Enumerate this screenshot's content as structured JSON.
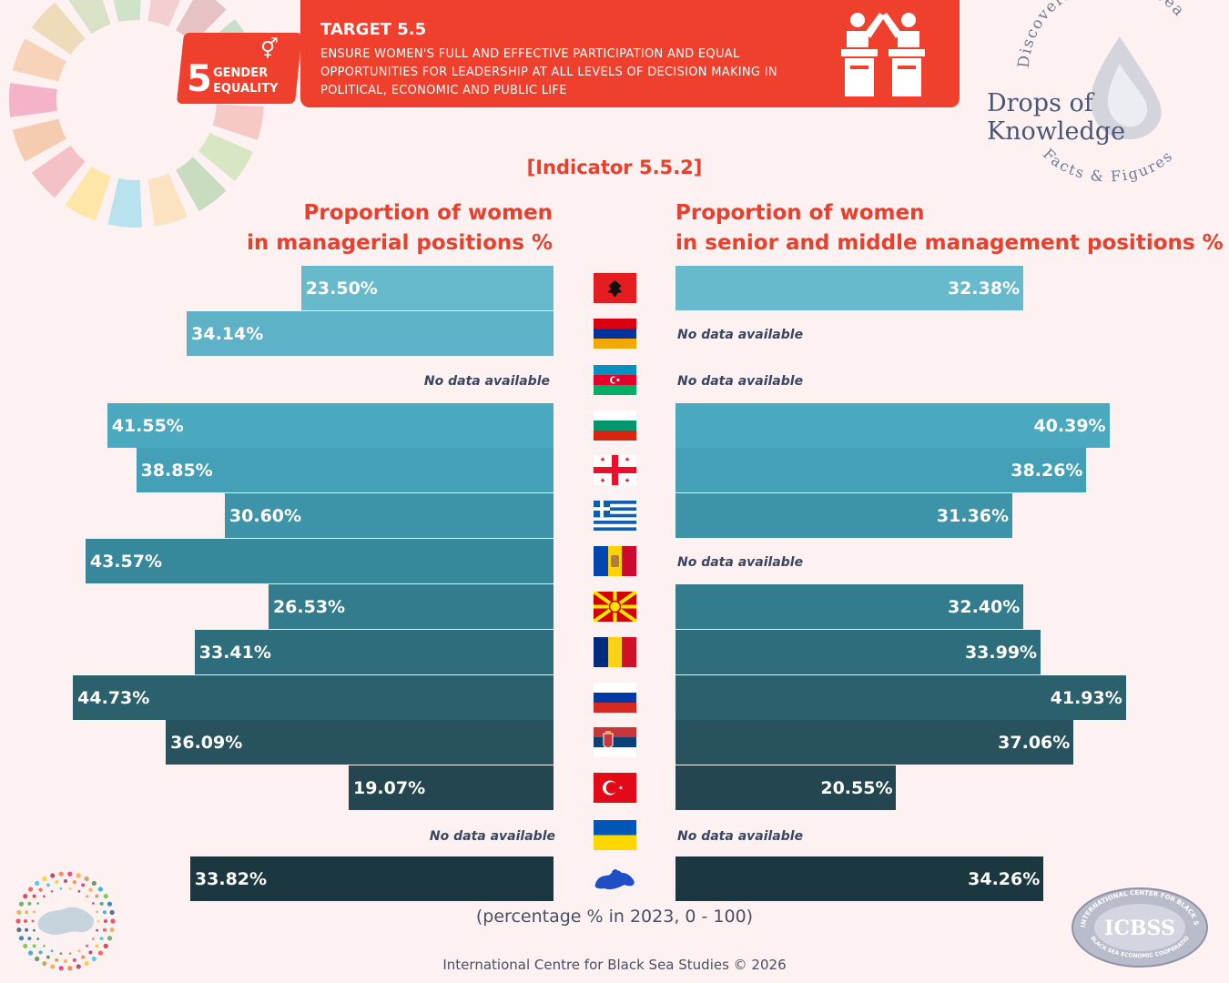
{
  "header": {
    "sdg_number": "5",
    "sdg_label": "GENDER EQUALITY",
    "target_title": "TARGET 5.5",
    "target_text": "ENSURE WOMEN'S FULL AND EFFECTIVE PARTICIPATION AND EQUAL OPPORTUNITIES FOR LEADERSHIP AT ALL LEVELS OF DECISION MAKING IN POLITICAL, ECONOMIC AND PUBLIC LIFE",
    "icon": "leadership-podium-icon"
  },
  "brand": {
    "arc_top": "Discovering Black Sea",
    "title": "Drops of Knowledge",
    "arc_bottom": "Facts & Figures"
  },
  "chart_data": {
    "type": "bar",
    "title": "[Indicator 5.5.2]",
    "left_title_line1": "Proportion of women",
    "left_title_line2": "in managerial positions %",
    "right_title_line1": "Proportion of women",
    "right_title_line2": "in senior and middle management positions %",
    "no_data_text": "No data available",
    "xlim": [
      0,
      100
    ],
    "categories": [
      "Albania",
      "Armenia",
      "Azerbaijan",
      "Bulgaria",
      "Georgia",
      "Greece",
      "Moldova",
      "North Macedonia",
      "Romania",
      "Russia",
      "Serbia",
      "Türkiye",
      "Ukraine",
      "Black Sea region"
    ],
    "series": [
      {
        "name": "Proportion of women in managerial positions %",
        "values": [
          23.5,
          34.14,
          null,
          41.55,
          38.85,
          30.6,
          43.57,
          26.53,
          33.41,
          44.73,
          36.09,
          19.07,
          null,
          33.82
        ],
        "labels": [
          "23.50%",
          "34.14%",
          null,
          "41.55%",
          "38.85%",
          "30.60%",
          "43.57%",
          "26.53%",
          "33.41%",
          "44.73%",
          "36.09%",
          "19.07%",
          null,
          "33.82%"
        ]
      },
      {
        "name": "Proportion of women in senior and middle management positions %",
        "values": [
          32.38,
          null,
          null,
          40.39,
          38.26,
          31.36,
          null,
          32.4,
          33.99,
          41.93,
          37.06,
          20.55,
          null,
          34.26
        ],
        "labels": [
          "32.38%",
          null,
          null,
          "40.39%",
          "38.26%",
          "31.36%",
          null,
          "32.40%",
          "33.99%",
          "41.93%",
          "37.06%",
          "20.55%",
          null,
          "34.26%"
        ]
      }
    ],
    "colors": [
      "#67b9cc",
      "#5db2c7",
      "#54adc3",
      "#4aa9bf",
      "#43a0b7",
      "#3d94a9",
      "#38889b",
      "#337c8d",
      "#2e6d7c",
      "#2b606d",
      "#27525e",
      "#234651",
      "#203d47",
      "#1b3740"
    ],
    "flags": [
      "albania-flag-icon",
      "armenia-flag-icon",
      "azerbaijan-flag-icon",
      "bulgaria-flag-icon",
      "georgia-flag-icon",
      "greece-flag-icon",
      "moldova-flag-icon",
      "north-macedonia-flag-icon",
      "romania-flag-icon",
      "russia-flag-icon",
      "serbia-flag-icon",
      "turkiye-flag-icon",
      "ukraine-flag-icon",
      "black-sea-map-icon"
    ],
    "footnote": "(percentage % in 2023, 0 - 100)"
  },
  "footer": {
    "credit": "International Centre for Black Sea Studies © 2026",
    "logo_text": "ICBSS",
    "logo_ring_top": "INTERNATIONAL CENTER FOR BLACK SEA STUDIES",
    "logo_ring_bottom": "BLACK SEA ECONOMIC COOPERATION"
  }
}
